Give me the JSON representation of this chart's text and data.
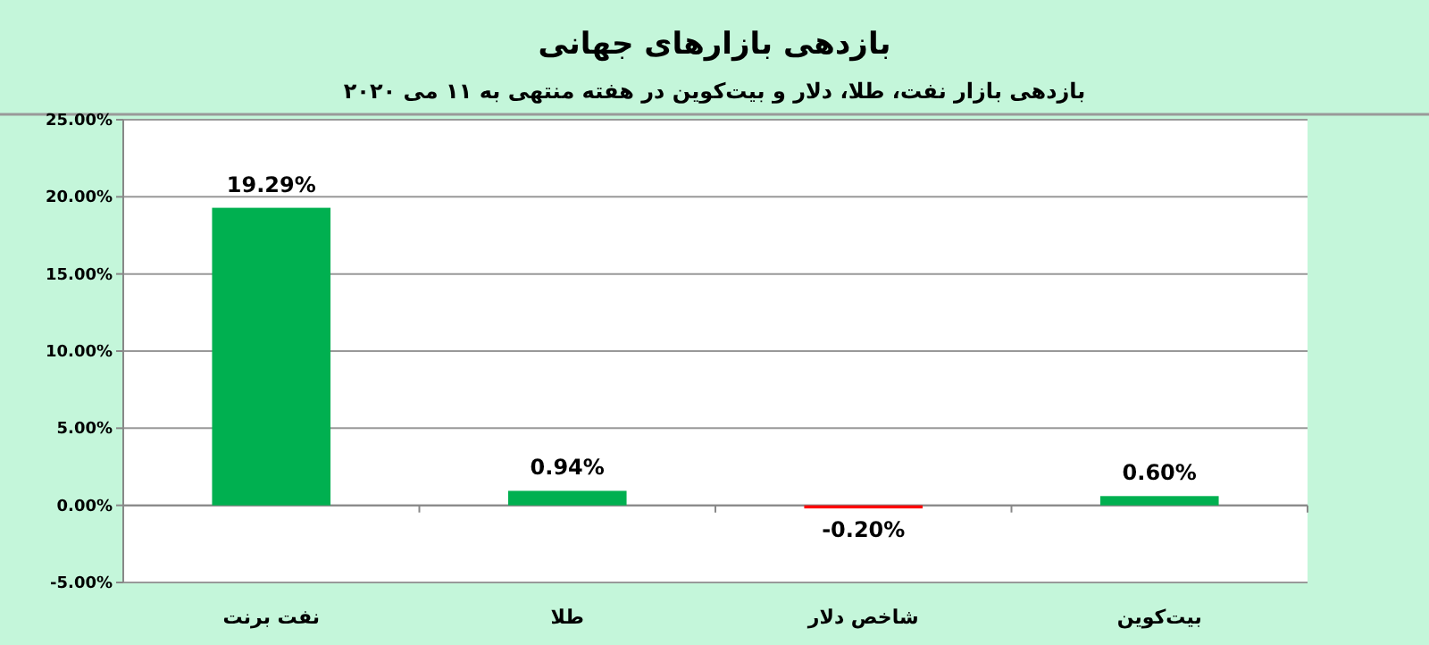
{
  "chart_data": {
    "type": "bar",
    "title": "بازدهی بازارهای جهانی",
    "subtitle": "بازدهی بازار نفت، طلا، دلار و بیت‌کوین در هفته منتهی به ۱۱ می ۲۰۲۰",
    "categories": [
      "نفت برنت",
      "طلا",
      "شاخص دلار",
      "بیت‌کوین"
    ],
    "values": [
      19.29,
      0.94,
      -0.2,
      0.6
    ],
    "colors": [
      "#00b050",
      "#00b050",
      "#ff0000",
      "#00b050"
    ],
    "value_labels": [
      "19.29%",
      "0.94%",
      "-0.20%",
      "0.60%"
    ],
    "ylim": [
      -5,
      25
    ],
    "yticks": [
      {
        "value": -5,
        "label": "-5.00%"
      },
      {
        "value": 0,
        "label": "0.00%"
      },
      {
        "value": 5,
        "label": "5.00%"
      },
      {
        "value": 10,
        "label": "10.00%"
      },
      {
        "value": 15,
        "label": "15.00%"
      },
      {
        "value": 20,
        "label": "20.00%"
      },
      {
        "value": 25,
        "label": "25.00%"
      }
    ],
    "grid": "y"
  }
}
